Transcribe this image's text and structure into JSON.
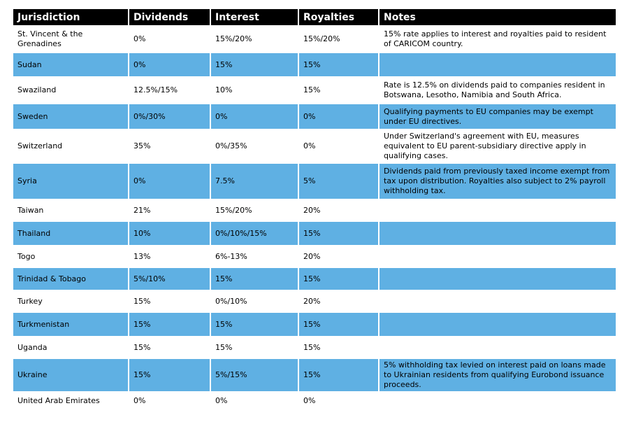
{
  "headers": {
    "jurisdiction": "Jurisdiction",
    "dividends": "Dividends",
    "interest": "Interest",
    "royalties": "Royalties",
    "notes": "Notes"
  },
  "rows": [
    {
      "jurisdiction": "St. Vincent & the Grenadines",
      "dividends": "0%",
      "interest": "15%/20%",
      "royalties": "15%/20%",
      "notes": "15% rate applies to interest and royalties paid to resident of CARICOM country."
    },
    {
      "jurisdiction": "Sudan",
      "dividends": "0%",
      "interest": "15%",
      "royalties": "15%",
      "notes": ""
    },
    {
      "jurisdiction": "Swaziland",
      "dividends": "12.5%/15%",
      "interest": "10%",
      "royalties": "15%",
      "notes": "Rate is 12.5% on dividends paid to companies resident in Botswana, Lesotho, Namibia and South Africa."
    },
    {
      "jurisdiction": "Sweden",
      "dividends": "0%/30%",
      "interest": "0%",
      "royalties": "0%",
      "notes": "Qualifying payments to EU companies may be exempt under EU directives."
    },
    {
      "jurisdiction": "Switzerland",
      "dividends": "35%",
      "interest": "0%/35%",
      "royalties": "0%",
      "notes": "Under Switzerland's agreement with EU, measures equivalent to EU parent-subsidiary directive apply in qualifying cases."
    },
    {
      "jurisdiction": "Syria",
      "dividends": "0%",
      "interest": "7.5%",
      "royalties": "5%",
      "notes": "Dividends paid from previously taxed income exempt from tax upon distribution. Royalties also subject to 2% payroll withholding tax."
    },
    {
      "jurisdiction": "Taiwan",
      "dividends": "21%",
      "interest": "15%/20%",
      "royalties": "20%",
      "notes": ""
    },
    {
      "jurisdiction": "Thailand",
      "dividends": "10%",
      "interest": "0%/10%/15%",
      "royalties": "15%",
      "notes": ""
    },
    {
      "jurisdiction": "Togo",
      "dividends": "13%",
      "interest": "6%-13%",
      "royalties": "20%",
      "notes": ""
    },
    {
      "jurisdiction": "Trinidad & Tobago",
      "dividends": "5%/10%",
      "interest": "15%",
      "royalties": "15%",
      "notes": ""
    },
    {
      "jurisdiction": "Turkey",
      "dividends": "15%",
      "interest": "0%/10%",
      "royalties": "20%",
      "notes": ""
    },
    {
      "jurisdiction": "Turkmenistan",
      "dividends": "15%",
      "interest": "15%",
      "royalties": "15%",
      "notes": ""
    },
    {
      "jurisdiction": "Uganda",
      "dividends": "15%",
      "interest": "15%",
      "royalties": "15%",
      "notes": ""
    },
    {
      "jurisdiction": "Ukraine",
      "dividends": "15%",
      "interest": "5%/15%",
      "royalties": "15%",
      "notes": "5% withholding tax levied on interest paid on loans made to Ukrainian residents from qualifying Eurobond issuance proceeds."
    },
    {
      "jurisdiction": "United Arab Emirates",
      "dividends": "0%",
      "interest": "0%",
      "royalties": "0%",
      "notes": ""
    }
  ],
  "colors": {
    "header_bg": "#000000",
    "header_text": "#ffffff",
    "stripe": "#5fb0e3",
    "row": "#ffffff"
  }
}
